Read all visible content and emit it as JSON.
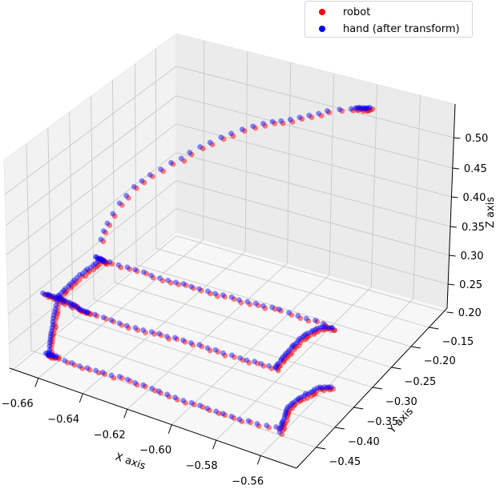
{
  "chart_data": {
    "type": "scatter3d",
    "title": "",
    "xlabel": "X axis",
    "ylabel": "Y axis",
    "zlabel": "Z axis",
    "xlim": [
      -0.67,
      -0.555
    ],
    "ylim": [
      -0.46,
      -0.13
    ],
    "zlim": [
      0.19,
      0.54
    ],
    "x_ticks": [
      "-0.66",
      "-0.64",
      "-0.62",
      "-0.60",
      "-0.58",
      "-0.56"
    ],
    "y_ticks": [
      "-0.15",
      "-0.20",
      "-0.25",
      "-0.30",
      "-0.35",
      "-0.40",
      "-0.45"
    ],
    "z_ticks": [
      "0.20",
      "0.25",
      "0.30",
      "0.35",
      "0.40",
      "0.45",
      "0.50"
    ],
    "grid": true,
    "legend_position": "upper right",
    "series": [
      {
        "name": "robot",
        "color": "#ff0000",
        "alpha": 0.5,
        "description": "trajectory: rises from lower-left corner up to top plateau (~z 0.52), then three horizontal sweeps along Y at low z (~0.20-0.30) with curved end hooks"
      },
      {
        "name": "hand (after transform)",
        "color": "#0000ff",
        "alpha": 0.5,
        "description": "closely overlaps robot trajectory with small offsets"
      }
    ],
    "approx_path_pixels": {
      "rise": [
        [
          127,
          300
        ],
        [
          135,
          280
        ],
        [
          150,
          255
        ],
        [
          168,
          235
        ],
        [
          188,
          220
        ],
        [
          215,
          205
        ],
        [
          250,
          185
        ],
        [
          290,
          167
        ],
        [
          330,
          155
        ],
        [
          375,
          148
        ],
        [
          410,
          140
        ],
        [
          440,
          137
        ],
        [
          458,
          136
        ]
      ],
      "upper_sweep": [
        [
          127,
          325
        ],
        [
          160,
          335
        ],
        [
          200,
          348
        ],
        [
          250,
          362
        ],
        [
          300,
          375
        ],
        [
          350,
          388
        ],
        [
          395,
          402
        ],
        [
          415,
          410
        ]
      ],
      "middle_sweep": [
        [
          60,
          370
        ],
        [
          100,
          388
        ],
        [
          150,
          405
        ],
        [
          200,
          418
        ],
        [
          250,
          432
        ],
        [
          300,
          448
        ],
        [
          345,
          460
        ]
      ],
      "lower_sweep": [
        [
          62,
          445
        ],
        [
          100,
          458
        ],
        [
          150,
          472
        ],
        [
          200,
          490
        ],
        [
          250,
          508
        ],
        [
          300,
          525
        ],
        [
          345,
          535
        ]
      ],
      "hook_1": [
        [
          345,
          460
        ],
        [
          360,
          440
        ],
        [
          380,
          420
        ],
        [
          400,
          410
        ],
        [
          415,
          410
        ]
      ],
      "hook_2": [
        [
          350,
          540
        ],
        [
          360,
          510
        ],
        [
          380,
          495
        ],
        [
          400,
          485
        ],
        [
          415,
          485
        ]
      ],
      "verticals": [
        [
          [
            62,
            445
          ],
          [
            68,
            395
          ],
          [
            75,
            370
          ]
        ],
        [
          [
            75,
            370
          ],
          [
            100,
            345
          ],
          [
            127,
            325
          ]
        ]
      ]
    }
  },
  "legend": {
    "items": [
      {
        "label": "robot",
        "color": "#ff0000"
      },
      {
        "label": "hand (after transform)",
        "color": "#0000ff"
      }
    ]
  },
  "axes": {
    "x_label": "X axis",
    "y_label": "Y axis",
    "z_label": "Z axis"
  }
}
